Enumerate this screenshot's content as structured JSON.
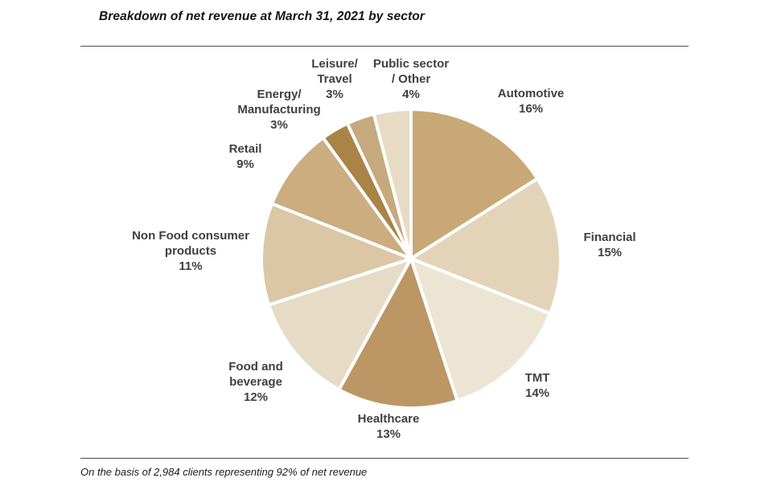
{
  "chart_data": {
    "type": "pie",
    "title": "Breakdown of net revenue at March 31, 2021 by sector",
    "categories": [
      "Automotive",
      "Financial",
      "TMT",
      "Healthcare",
      "Food and beverage",
      "Non Food consumer products",
      "Retail",
      "Energy/Manufacturing",
      "Leisure/Travel",
      "Public sector / Other"
    ],
    "values": [
      16,
      15,
      14,
      13,
      12,
      11,
      9,
      3,
      3,
      4
    ],
    "unit": "%",
    "colors": [
      "#c8a876",
      "#e3d4b9",
      "#ede5d3",
      "#bc9765",
      "#e6dcc6",
      "#dbc7a6",
      "#cbad80",
      "#aa8347",
      "#c6a97d",
      "#e7dcc3"
    ],
    "start_angle_deg": 0,
    "direction": "clockwise",
    "legend_position": "none",
    "label_texts": {
      "0": "Automotive\n16%",
      "1": "Financial\n15%",
      "2": "TMT\n14%",
      "3": "Healthcare\n13%",
      "4": "Food and\nbeverage\n12%",
      "5": "Non Food consumer\nproducts\n11%",
      "6": "Retail\n9%",
      "7": "Energy/\nManufacturing\n3%",
      "8": "Leisure/\nTravel\n3%",
      "9": "Public sector\n/ Other\n4%"
    },
    "footnote": "On the basis of 2,984 clients representing 92% of net revenue",
    "slice_border_color": "#ffffff",
    "divider_color": "#4d4d4d"
  }
}
